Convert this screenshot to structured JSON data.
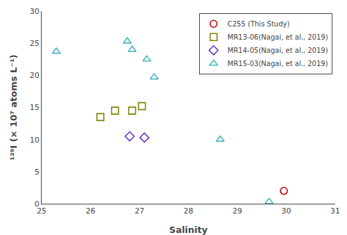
{
  "chart_data": {
    "type": "scatter",
    "xlabel": "Salinity",
    "ylabel": "¹²⁹I (× 10⁷ atoms L⁻¹)",
    "xlim": [
      25,
      31
    ],
    "ylim": [
      0,
      30
    ],
    "xticks": [
      25,
      26,
      27,
      28,
      29,
      30,
      31
    ],
    "yticks": [
      0,
      5,
      10,
      15,
      20,
      25,
      30
    ],
    "grid": false,
    "legend": "upper right",
    "series": [
      {
        "name": "C255 (This Study)",
        "color": "#cc0000",
        "marker": "circle",
        "x": [
          29.95
        ],
        "values": [
          2.0
        ]
      },
      {
        "name": "MR13-06(Nagai, et al., 2019)",
        "color": "#808000",
        "marker": "square",
        "x": [
          26.2,
          26.5,
          26.85,
          27.05
        ],
        "values": [
          13.5,
          14.5,
          14.5,
          15.2
        ]
      },
      {
        "name": "MR14-05(Nagai, et al., 2019)",
        "color": "#6633bb",
        "marker": "diamond",
        "x": [
          26.8,
          27.1
        ],
        "values": [
          10.5,
          10.3
        ]
      },
      {
        "name": "MR15-03(Nagai, et al., 2019)",
        "color": "#4ab8c1",
        "marker": "triangle-up",
        "x": [
          25.3,
          26.75,
          26.85,
          27.15,
          27.3,
          28.65,
          29.65
        ],
        "values": [
          23.7,
          25.3,
          24.0,
          22.5,
          19.7,
          10.0,
          0.3
        ]
      }
    ]
  }
}
